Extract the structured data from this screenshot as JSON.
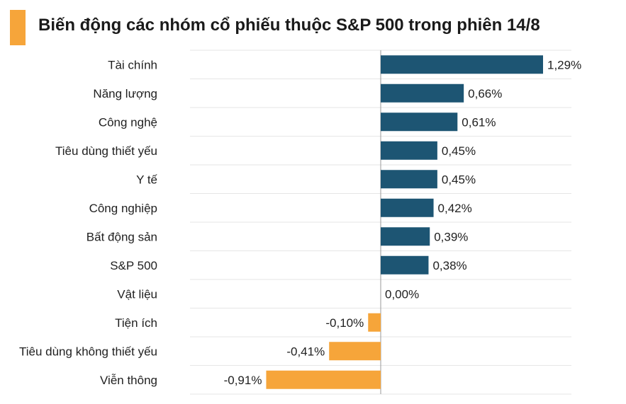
{
  "colors": {
    "positive": "#1d5573",
    "negative": "#f6a53a",
    "accent": "#f6a53a",
    "grid": "#e6e6e6",
    "zero_line": "#9a9a9a"
  },
  "chart_data": {
    "type": "bar",
    "orientation": "horizontal",
    "title": "Biến động các nhóm cổ phiếu thuộc S&P 500 trong phiên 14/8",
    "categories": [
      "Tài chính",
      "Năng lượng",
      "Công nghệ",
      "Tiêu dùng thiết yếu",
      "Y tế",
      "Công nghiệp",
      "Bất động sản",
      "S&P 500",
      "Vật liệu",
      "Tiện ích",
      "Tiêu dùng không thiết yếu",
      "Viễn thông"
    ],
    "values": [
      1.29,
      0.66,
      0.61,
      0.45,
      0.45,
      0.42,
      0.39,
      0.38,
      0.0,
      -0.1,
      -0.41,
      -0.91
    ],
    "value_labels": [
      "1,29%",
      "0,66%",
      "0,61%",
      "0,45%",
      "0,45%",
      "0,42%",
      "0,39%",
      "0,38%",
      "0,00%",
      "-0,10%",
      "-0,41%",
      "-0,91%"
    ],
    "unit": "%",
    "xlim": [
      -1.15,
      1.57
    ],
    "grid": true,
    "legend": "none"
  }
}
